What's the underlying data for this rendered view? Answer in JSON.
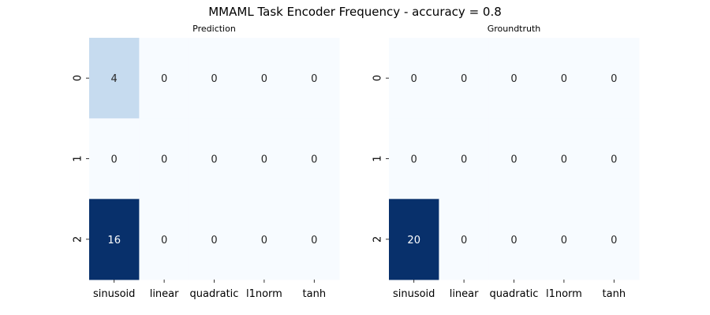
{
  "title": "MMAML Task Encoder Frequency - accuracy = 0.8",
  "colormap": {
    "name": "Blues",
    "low_color": "#f7fbff",
    "high_color": "#08306b",
    "text_dark": "#262626",
    "text_light": "#ffffff"
  },
  "chart_data": [
    {
      "type": "heatmap",
      "title": "Prediction",
      "x_tick_labels": [
        "sinusoid",
        "linear",
        "quadratic",
        "l1norm",
        "tanh"
      ],
      "y_tick_labels": [
        "0",
        "1",
        "2"
      ],
      "values": [
        [
          4,
          0,
          0,
          0,
          0
        ],
        [
          0,
          0,
          0,
          0,
          0
        ],
        [
          16,
          0,
          0,
          0,
          0
        ]
      ],
      "annotated": true,
      "colorbar": false
    },
    {
      "type": "heatmap",
      "title": "Groundtruth",
      "x_tick_labels": [
        "sinusoid",
        "linear",
        "quadratic",
        "l1norm",
        "tanh"
      ],
      "y_tick_labels": [
        "0",
        "1",
        "2"
      ],
      "values": [
        [
          0,
          0,
          0,
          0,
          0
        ],
        [
          0,
          0,
          0,
          0,
          0
        ],
        [
          20,
          0,
          0,
          0,
          0
        ]
      ],
      "annotated": true,
      "colorbar": false
    }
  ]
}
